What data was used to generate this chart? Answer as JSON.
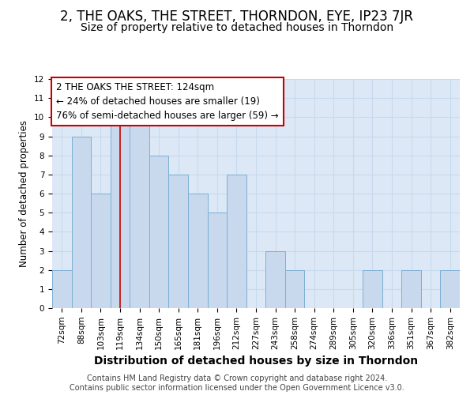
{
  "title": "2, THE OAKS, THE STREET, THORNDON, EYE, IP23 7JR",
  "subtitle": "Size of property relative to detached houses in Thorndon",
  "xlabel": "Distribution of detached houses by size in Thorndon",
  "ylabel": "Number of detached properties",
  "footer1": "Contains HM Land Registry data © Crown copyright and database right 2024.",
  "footer2": "Contains public sector information licensed under the Open Government Licence v3.0.",
  "annotation_line1": "2 THE OAKS THE STREET: 124sqm",
  "annotation_line2": "← 24% of detached houses are smaller (19)",
  "annotation_line3": "76% of semi-detached houses are larger (59) →",
  "bar_labels": [
    "72sqm",
    "88sqm",
    "103sqm",
    "119sqm",
    "134sqm",
    "150sqm",
    "165sqm",
    "181sqm",
    "196sqm",
    "212sqm",
    "227sqm",
    "243sqm",
    "258sqm",
    "274sqm",
    "289sqm",
    "305sqm",
    "320sqm",
    "336sqm",
    "351sqm",
    "367sqm",
    "382sqm"
  ],
  "bar_values": [
    2,
    9,
    6,
    10,
    10,
    8,
    7,
    6,
    5,
    7,
    0,
    3,
    2,
    0,
    0,
    0,
    2,
    0,
    2,
    0,
    2
  ],
  "bar_color": "#c8d9ee",
  "bar_edge_color": "#7bafd4",
  "ref_line_x": 3.0,
  "ref_line_color": "#cc0000",
  "ylim_max": 12,
  "grid_color": "#c8d9ee",
  "bg_color": "#dce8f5",
  "annotation_box_edge_color": "#cc0000",
  "title_fontsize": 12,
  "subtitle_fontsize": 10,
  "xlabel_fontsize": 10,
  "ylabel_fontsize": 8.5,
  "tick_fontsize": 7.5,
  "annot_fontsize": 8.5,
  "footer_fontsize": 7
}
